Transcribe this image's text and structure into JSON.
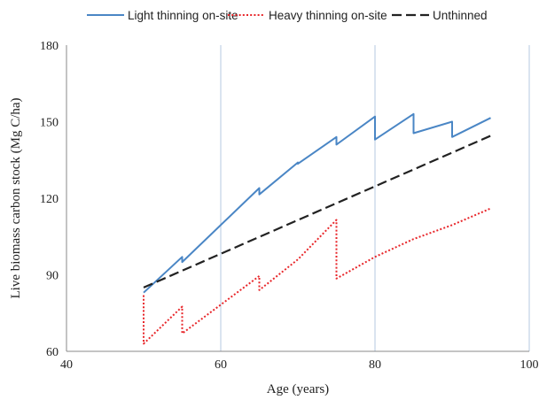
{
  "chart_data": {
    "type": "line",
    "xlabel": "Age (years)",
    "ylabel": "Live biomass carbon stock (Mg C/ha)",
    "xlim": [
      40,
      100
    ],
    "ylim": [
      60,
      180
    ],
    "xticks": [
      40,
      60,
      80,
      100
    ],
    "yticks": [
      60,
      90,
      120,
      150,
      180
    ],
    "grid": "vertical major gridlines",
    "legend_position": "top",
    "series": [
      {
        "name": "Light thinning on-site",
        "color": "#4a86c5",
        "style": "solid",
        "points": [
          [
            50,
            83
          ],
          [
            55,
            97
          ],
          [
            55,
            95
          ],
          [
            65,
            124
          ],
          [
            65,
            121.5
          ],
          [
            70,
            134
          ],
          [
            70,
            133.5
          ],
          [
            75,
            144
          ],
          [
            75,
            141
          ],
          [
            80,
            152
          ],
          [
            80,
            143
          ],
          [
            85,
            153
          ],
          [
            85,
            145.5
          ],
          [
            90,
            150
          ],
          [
            90,
            144
          ],
          [
            95,
            151.5
          ]
        ]
      },
      {
        "name": "Heavy thinning on-site",
        "color": "#e8262a",
        "style": "dotted",
        "points": [
          [
            50,
            82
          ],
          [
            50,
            63
          ],
          [
            55,
            77.5
          ],
          [
            55,
            67
          ],
          [
            65,
            89.5
          ],
          [
            65,
            84
          ],
          [
            70,
            96
          ],
          [
            75,
            111.5
          ],
          [
            75,
            88.5
          ],
          [
            80,
            97
          ],
          [
            85,
            104
          ],
          [
            90,
            109.5
          ],
          [
            95,
            116
          ]
        ]
      },
      {
        "name": "Unthinned",
        "color": "#222222",
        "style": "dashed",
        "points": [
          [
            50,
            85
          ],
          [
            95,
            144.5
          ]
        ]
      }
    ]
  }
}
